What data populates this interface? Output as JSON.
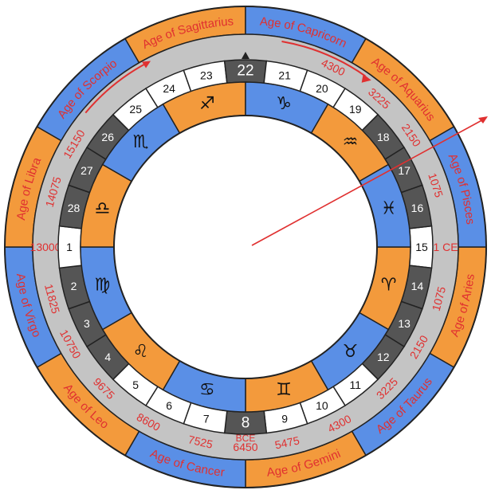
{
  "diagram": {
    "ages": [
      {
        "label": "Age of Aries",
        "color": "#f39a3c"
      },
      {
        "label": "Age of Taurus",
        "color": "#5a8fe6"
      },
      {
        "label": "Age of Gemini",
        "color": "#f39a3c"
      },
      {
        "label": "Age of Cancer",
        "color": "#5a8fe6"
      },
      {
        "label": "Age of Leo",
        "color": "#f39a3c"
      },
      {
        "label": "Age of Virgo",
        "color": "#5a8fe6"
      },
      {
        "label": "Age of Libra",
        "color": "#f39a3c"
      },
      {
        "label": "Age of Scorpio",
        "color": "#5a8fe6"
      },
      {
        "label": "Age of Sagittarius",
        "color": "#f39a3c"
      },
      {
        "label": "Age of Capricorn",
        "color": "#5a8fe6"
      },
      {
        "label": "Age of Aquarius",
        "color": "#f39a3c"
      },
      {
        "label": "Age of Pisces",
        "color": "#5a8fe6"
      }
    ],
    "years": [
      {
        "label": "1 CE"
      },
      {
        "label": "1075"
      },
      {
        "label": "2150"
      },
      {
        "label": "3225"
      },
      {
        "label": "4300"
      },
      {
        "label": "5475"
      },
      {
        "label": "6450"
      },
      {
        "label": "7525"
      },
      {
        "label": "8600"
      },
      {
        "label": "9675"
      },
      {
        "label": "10750"
      },
      {
        "label": "11825"
      },
      {
        "label": "13000"
      },
      {
        "label": "14075"
      },
      {
        "label": "15150"
      },
      {
        "label": "4300"
      },
      {
        "label": "3225"
      },
      {
        "label": "2150"
      },
      {
        "label": "1075"
      }
    ],
    "bce_label": "BCE",
    "numbers": [
      "15",
      "14",
      "13",
      "12",
      "11",
      "10",
      "9",
      "8",
      "7",
      "6",
      "5",
      "4",
      "3",
      "2",
      "1",
      "28",
      "27",
      "26",
      "25",
      "24",
      "23",
      "22",
      "21",
      "20",
      "19",
      "18",
      "17",
      "16"
    ],
    "signs": [
      {
        "glyph": "♈",
        "color": "#f39a3c"
      },
      {
        "glyph": "♉",
        "color": "#5a8fe6"
      },
      {
        "glyph": "♊",
        "color": "#f39a3c"
      },
      {
        "glyph": "♋",
        "color": "#5a8fe6"
      },
      {
        "glyph": "♌",
        "color": "#f39a3c"
      },
      {
        "glyph": "♍",
        "color": "#5a8fe6"
      },
      {
        "glyph": "♎",
        "color": "#f39a3c"
      },
      {
        "glyph": "♏",
        "color": "#5a8fe6"
      },
      {
        "glyph": "♐",
        "color": "#f39a3c"
      },
      {
        "glyph": "♑",
        "color": "#5a8fe6"
      },
      {
        "glyph": "♒",
        "color": "#f39a3c"
      },
      {
        "glyph": "♓",
        "color": "#5a8fe6"
      }
    ],
    "colors": {
      "orange": "#f39a3c",
      "blue": "#5a8fe6",
      "dark": "#555555",
      "grey": "#c4c4c4",
      "red": "#e03030",
      "white": "#ffffff"
    }
  }
}
